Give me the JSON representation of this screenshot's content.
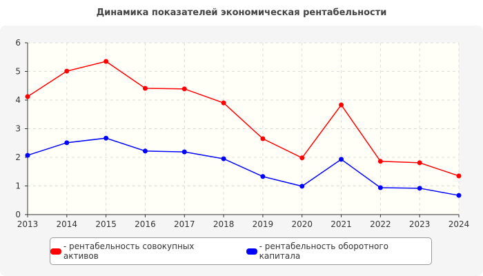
{
  "chart_data": {
    "type": "line",
    "title": "Динамика показателей экономическая рентабельности",
    "x": [
      "2013",
      "2014",
      "2015",
      "2016",
      "2017",
      "2018",
      "2019",
      "2020",
      "2021",
      "2022",
      "2023",
      "2024"
    ],
    "ylim": [
      0,
      6
    ],
    "yticks": [
      "0",
      "1",
      "2",
      "3",
      "4",
      "5",
      "6"
    ],
    "grid": true,
    "legend_position": "bottom",
    "series": [
      {
        "name": "- рентабельность совокупных активов",
        "color": "#ff0000",
        "values": [
          4.12,
          5.01,
          5.35,
          4.41,
          4.39,
          3.9,
          2.65,
          1.98,
          3.83,
          1.86,
          1.81,
          1.35
        ]
      },
      {
        "name": "- рентабельность оборотного капитала",
        "color": "#0000ff",
        "values": [
          2.07,
          2.51,
          2.67,
          2.22,
          2.19,
          1.95,
          1.33,
          0.99,
          1.93,
          0.94,
          0.92,
          0.67
        ]
      }
    ]
  }
}
